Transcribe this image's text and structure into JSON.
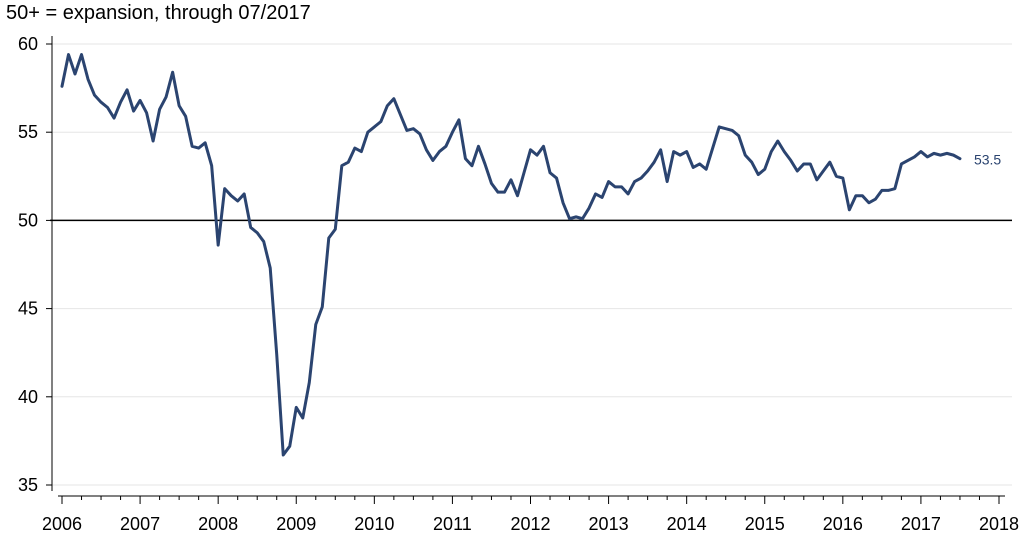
{
  "chart_data": {
    "type": "line",
    "title": "50+ = expansion, through 07/2017",
    "xlabel": "",
    "ylabel": "",
    "xlim": [
      2006,
      2018
    ],
    "ylim": [
      35,
      60
    ],
    "x_ticks": [
      2006,
      2007,
      2008,
      2009,
      2010,
      2011,
      2012,
      2013,
      2014,
      2015,
      2016,
      2017,
      2018
    ],
    "y_ticks": [
      35,
      40,
      45,
      50,
      55,
      60
    ],
    "grid": true,
    "reference_line": 50,
    "line_color": "#2b4470",
    "end_label": "53.5",
    "series": [
      {
        "start": "2006-01",
        "frequency": "monthly",
        "values": [
          57.6,
          59.4,
          58.3,
          59.4,
          58.0,
          57.1,
          56.7,
          56.4,
          55.8,
          56.7,
          57.4,
          56.2,
          56.8,
          56.1,
          54.5,
          56.3,
          57.0,
          58.4,
          56.5,
          55.9,
          54.2,
          54.1,
          54.4,
          53.1,
          48.6,
          51.8,
          51.4,
          51.1,
          51.5,
          49.6,
          49.3,
          48.8,
          47.3,
          42.4,
          36.7,
          37.2,
          39.4,
          38.8,
          40.8,
          44.1,
          45.1,
          49.0,
          49.5,
          53.1,
          53.3,
          54.1,
          53.9,
          55.0,
          55.3,
          55.6,
          56.5,
          56.9,
          56.0,
          55.1,
          55.2,
          54.9,
          54.0,
          53.4,
          53.9,
          54.2,
          55.0,
          55.7,
          53.5,
          53.1,
          54.2,
          53.2,
          52.1,
          51.6,
          51.6,
          52.3,
          51.4,
          52.7,
          54.0,
          53.7,
          54.2,
          52.7,
          52.4,
          51.0,
          50.1,
          50.2,
          50.1,
          50.7,
          51.5,
          51.3,
          52.2,
          51.9,
          51.9,
          51.5,
          52.2,
          52.4,
          52.8,
          53.3,
          54.0,
          52.2,
          53.9,
          53.7,
          53.9,
          53.0,
          53.2,
          52.9,
          54.1,
          55.3,
          55.2,
          55.1,
          54.8,
          53.7,
          53.3,
          52.6,
          52.9,
          53.9,
          54.5,
          53.9,
          53.4,
          52.8,
          53.2,
          53.2,
          52.3,
          52.8,
          53.3,
          52.5,
          52.4,
          50.6,
          51.4,
          51.4,
          51.0,
          51.2,
          51.7,
          51.7,
          51.8,
          53.2,
          53.4,
          53.6,
          53.9,
          53.6,
          53.8,
          53.7,
          53.8,
          53.7,
          53.5
        ]
      }
    ]
  }
}
